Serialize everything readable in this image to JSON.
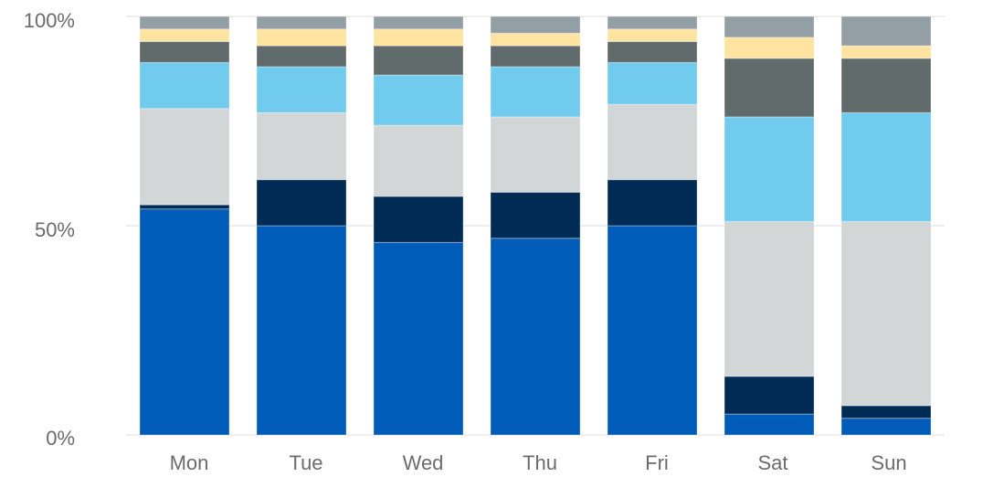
{
  "chart_data": {
    "type": "bar",
    "stacked": true,
    "normalized": true,
    "categories": [
      "Mon",
      "Tue",
      "Wed",
      "Thu",
      "Fri",
      "Sat",
      "Sun"
    ],
    "y_ticks": [
      "0%",
      "50%",
      "100%"
    ],
    "ylim": [
      0,
      100
    ],
    "grid": true,
    "legend": "none",
    "series": [
      {
        "color": "#005cb8",
        "values": [
          54,
          50,
          46,
          47,
          50,
          5,
          4
        ]
      },
      {
        "color": "#002b55",
        "values": [
          1,
          11,
          11,
          11,
          11,
          9,
          3
        ]
      },
      {
        "color": "#d2d6d6",
        "values": [
          23,
          16,
          17,
          18,
          18,
          37,
          44
        ]
      },
      {
        "color": "#70cbee",
        "values": [
          11,
          11,
          12,
          12,
          10,
          25,
          26
        ]
      },
      {
        "color": "#626b6c",
        "values": [
          5,
          5,
          7,
          5,
          5,
          14,
          13
        ]
      },
      {
        "color": "#ffe3a0",
        "values": [
          3,
          4,
          4,
          3,
          3,
          5,
          3
        ]
      },
      {
        "color": "#939ea5",
        "values": [
          3,
          3,
          3,
          4,
          3,
          5,
          7
        ]
      }
    ]
  }
}
